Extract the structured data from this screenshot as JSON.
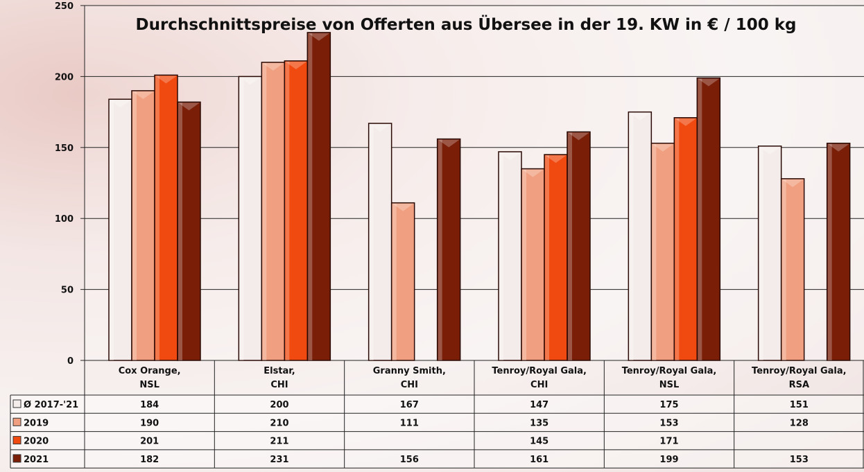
{
  "chart_data": {
    "type": "bar",
    "title": "Durchschnittspreise von Offerten aus Übersee in der 19. KW in € / 100 kg",
    "xlabel": "",
    "ylabel": "",
    "ylim": [
      0,
      250
    ],
    "yticks": [
      "0",
      "50",
      "100",
      "150",
      "200",
      "250"
    ],
    "grid": true,
    "legend": "table-left",
    "categories": [
      [
        "Cox Orange,",
        "NSL"
      ],
      [
        "Elstar,",
        "CHI"
      ],
      [
        "Granny Smith,",
        "CHI"
      ],
      [
        "Tenroy/Royal Gala,",
        "CHI"
      ],
      [
        "Tenroy/Royal Gala,",
        "NSL"
      ],
      [
        "Tenroy/Royal Gala,",
        "RSA"
      ]
    ],
    "series": [
      {
        "name": "Ø 2017-'21",
        "color": "#f4ecea",
        "values": [
          184,
          200,
          167,
          147,
          175,
          151
        ]
      },
      {
        "name": "2019",
        "color": "#f0a080",
        "values": [
          190,
          210,
          111,
          135,
          153,
          128
        ]
      },
      {
        "name": "2020",
        "color": "#f04a10",
        "values": [
          201,
          211,
          null,
          145,
          171,
          null
        ]
      },
      {
        "name": "2021",
        "color": "#7a1e08",
        "values": [
          182,
          231,
          156,
          161,
          199,
          153
        ]
      }
    ]
  }
}
